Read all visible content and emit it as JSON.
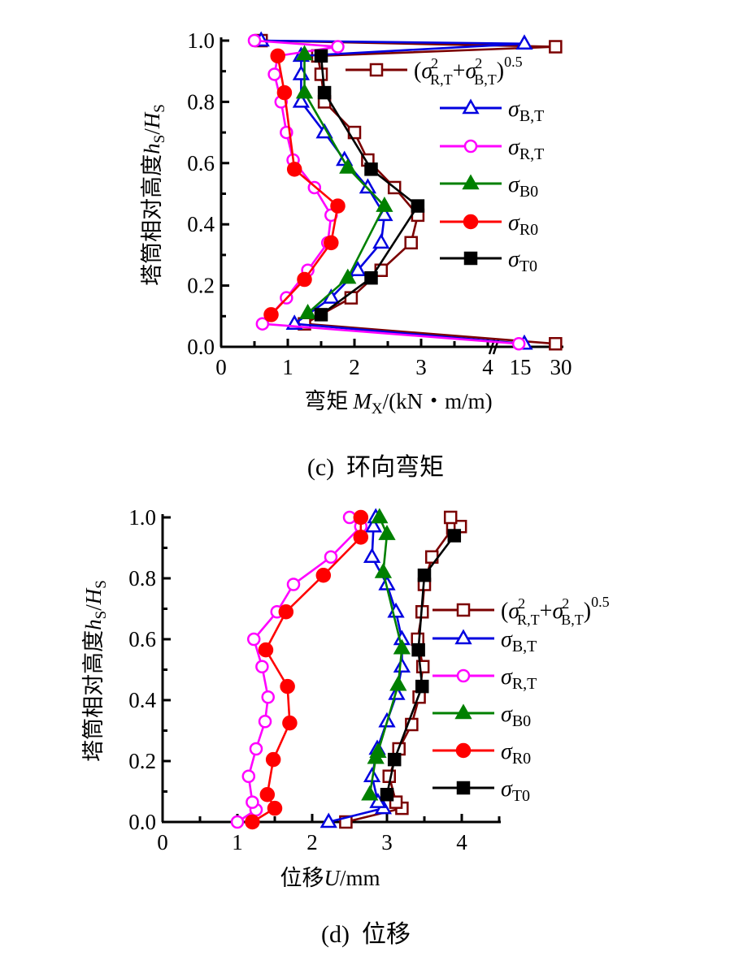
{
  "chart_data": [
    {
      "type": "line",
      "caption": "(c)  环向弯矩",
      "xlabel": "弯矩 M_X/(kN・m/m)",
      "xlabel_parts": {
        "prefix": "弯矩",
        "var": "M",
        "sub": "X",
        "suffix": "/(kN・m/m)"
      },
      "ylabel": "塔筒相对高度h_S/H_S",
      "ylabel_parts": {
        "prefix": "塔筒相对高度",
        "var1": "h",
        "sub1": "S",
        "slash": "/",
        "var2": "H",
        "sub2": "S"
      },
      "xticks": [
        "0",
        "1",
        "2",
        "3",
        "4",
        "15",
        "30"
      ],
      "xtick_values": [
        0,
        1,
        2,
        3,
        4,
        15,
        30
      ],
      "x_axis_break": "between 4 and 15",
      "yticks": [
        "0.0",
        "0.2",
        "0.4",
        "0.6",
        "0.8",
        "1.0"
      ],
      "ylim": [
        0,
        1.0
      ],
      "legend_position": "right",
      "series": [
        {
          "name": "(σ²R,T+σ²B,T)^0.5",
          "color": "#7b0000",
          "marker": "open-square",
          "points": [
            [
              0.6,
              1.0
            ],
            [
              28,
              0.98
            ],
            [
              1.45,
              0.95
            ],
            [
              1.5,
              0.89
            ],
            [
              1.55,
              0.8
            ],
            [
              2.0,
              0.7
            ],
            [
              2.2,
              0.61
            ],
            [
              2.6,
              0.52
            ],
            [
              2.95,
              0.43
            ],
            [
              2.85,
              0.34
            ],
            [
              2.4,
              0.25
            ],
            [
              1.95,
              0.16
            ],
            [
              1.25,
              0.075
            ],
            [
              28,
              0.01
            ]
          ]
        },
        {
          "name": "σB,T",
          "color": "#0000e0",
          "marker": "open-triangle",
          "points": [
            [
              0.6,
              1.0
            ],
            [
              16.5,
              0.99
            ],
            [
              1.2,
              0.95
            ],
            [
              1.2,
              0.89
            ],
            [
              1.2,
              0.8
            ],
            [
              1.55,
              0.7
            ],
            [
              1.85,
              0.61
            ],
            [
              2.2,
              0.52
            ],
            [
              2.45,
              0.43
            ],
            [
              2.4,
              0.34
            ],
            [
              2.05,
              0.25
            ],
            [
              1.65,
              0.16
            ],
            [
              1.1,
              0.075
            ],
            [
              16.5,
              0.01
            ]
          ]
        },
        {
          "name": "σR,T",
          "color": "#ff00ff",
          "marker": "open-circle",
          "points": [
            [
              0.5,
              1.0
            ],
            [
              1.75,
              0.98
            ],
            [
              0.85,
              0.95
            ],
            [
              0.8,
              0.89
            ],
            [
              0.9,
              0.8
            ],
            [
              0.98,
              0.7
            ],
            [
              1.08,
              0.61
            ],
            [
              1.4,
              0.52
            ],
            [
              1.65,
              0.43
            ],
            [
              1.6,
              0.34
            ],
            [
              1.3,
              0.25
            ],
            [
              0.98,
              0.16
            ],
            [
              0.62,
              0.075
            ],
            [
              14.5,
              0.01
            ]
          ]
        },
        {
          "name": "σB0",
          "color": "#008000",
          "marker": "filled-triangle",
          "points": [
            [
              1.25,
              0.955
            ],
            [
              1.25,
              0.83
            ],
            [
              1.9,
              0.585
            ],
            [
              2.45,
              0.46
            ],
            [
              1.9,
              0.225
            ],
            [
              1.3,
              0.11
            ]
          ]
        },
        {
          "name": "σR0",
          "color": "#ff0000",
          "marker": "filled-circle",
          "points": [
            [
              0.85,
              0.95
            ],
            [
              0.95,
              0.83
            ],
            [
              1.1,
              0.58
            ],
            [
              1.75,
              0.46
            ],
            [
              1.65,
              0.34
            ],
            [
              1.25,
              0.22
            ],
            [
              0.75,
              0.105
            ]
          ]
        },
        {
          "name": "σT0",
          "color": "#000000",
          "marker": "filled-square",
          "points": [
            [
              1.5,
              0.95
            ],
            [
              1.55,
              0.83
            ],
            [
              2.25,
              0.58
            ],
            [
              2.95,
              0.46
            ],
            [
              2.25,
              0.225
            ],
            [
              1.5,
              0.105
            ]
          ]
        }
      ]
    },
    {
      "type": "line",
      "caption": "(d)  位移",
      "xlabel": "位移U/mm",
      "xlabel_parts": {
        "prefix": "位移",
        "var": "U",
        "suffix": "/mm"
      },
      "ylabel": "塔筒相对高度h_S/H_S",
      "ylabel_parts": {
        "prefix": "塔筒相对高度",
        "var1": "h",
        "sub1": "S",
        "slash": "/",
        "var2": "H",
        "sub2": "S"
      },
      "xticks": [
        "0",
        "1",
        "2",
        "3",
        "4"
      ],
      "xtick_values": [
        0,
        1,
        2,
        3,
        4
      ],
      "xlim": [
        0,
        4.5
      ],
      "yticks": [
        "0.0",
        "0.2",
        "0.4",
        "0.6",
        "0.8",
        "1.0"
      ],
      "ylim": [
        0,
        1.0
      ],
      "legend_position": "right",
      "series": [
        {
          "name": "(σ²R,T+σ²B,T)^0.5",
          "color": "#7b0000",
          "marker": "open-square",
          "points": [
            [
              2.45,
              0.0
            ],
            [
              3.2,
              0.045
            ],
            [
              3.12,
              0.065
            ],
            [
              3.03,
              0.15
            ],
            [
              3.16,
              0.24
            ],
            [
              3.33,
              0.32
            ],
            [
              3.43,
              0.41
            ],
            [
              3.48,
              0.51
            ],
            [
              3.41,
              0.6
            ],
            [
              3.47,
              0.69
            ],
            [
              3.5,
              0.78
            ],
            [
              3.6,
              0.87
            ],
            [
              3.88,
              0.965
            ],
            [
              3.98,
              0.97
            ],
            [
              3.85,
              1.0
            ]
          ]
        },
        {
          "name": "σB,T",
          "color": "#0000e0",
          "marker": "open-triangle",
          "points": [
            [
              2.22,
              0.0
            ],
            [
              2.95,
              0.045
            ],
            [
              2.88,
              0.065
            ],
            [
              2.8,
              0.15
            ],
            [
              2.87,
              0.24
            ],
            [
              3.0,
              0.33
            ],
            [
              3.13,
              0.42
            ],
            [
              3.2,
              0.51
            ],
            [
              3.2,
              0.6
            ],
            [
              3.12,
              0.69
            ],
            [
              3.0,
              0.78
            ],
            [
              2.8,
              0.87
            ],
            [
              2.82,
              0.97
            ],
            [
              2.85,
              1.0
            ]
          ]
        },
        {
          "name": "σR,T",
          "color": "#ff00ff",
          "marker": "open-circle",
          "points": [
            [
              1.0,
              0.0
            ],
            [
              1.25,
              0.04
            ],
            [
              1.2,
              0.065
            ],
            [
              1.15,
              0.15
            ],
            [
              1.25,
              0.24
            ],
            [
              1.37,
              0.33
            ],
            [
              1.41,
              0.41
            ],
            [
              1.33,
              0.51
            ],
            [
              1.22,
              0.6
            ],
            [
              1.53,
              0.69
            ],
            [
              1.75,
              0.78
            ],
            [
              2.25,
              0.87
            ],
            [
              2.65,
              0.97
            ],
            [
              2.5,
              1.0
            ]
          ]
        },
        {
          "name": "σB0",
          "color": "#008000",
          "marker": "filled-triangle",
          "points": [
            [
              2.77,
              0.09
            ],
            [
              2.85,
              0.21
            ],
            [
              2.88,
              0.23
            ],
            [
              3.15,
              0.45
            ],
            [
              3.2,
              0.57
            ],
            [
              2.95,
              0.82
            ],
            [
              3.0,
              0.945
            ],
            [
              2.9,
              1.0
            ]
          ]
        },
        {
          "name": "σR0",
          "color": "#ff0000",
          "marker": "filled-circle",
          "points": [
            [
              1.2,
              0.0
            ],
            [
              1.5,
              0.045
            ],
            [
              1.4,
              0.09
            ],
            [
              1.48,
              0.205
            ],
            [
              1.7,
              0.325
            ],
            [
              1.67,
              0.445
            ],
            [
              1.38,
              0.565
            ],
            [
              1.65,
              0.69
            ],
            [
              2.15,
              0.81
            ],
            [
              2.65,
              0.935
            ],
            [
              2.65,
              1.0
            ]
          ]
        },
        {
          "name": "σT0",
          "color": "#000000",
          "marker": "filled-square",
          "points": [
            [
              3.0,
              0.09
            ],
            [
              3.1,
              0.205
            ],
            [
              3.47,
              0.445
            ],
            [
              3.42,
              0.565
            ],
            [
              3.5,
              0.81
            ],
            [
              3.9,
              0.94
            ]
          ]
        }
      ]
    }
  ],
  "legend_labels": {
    "combined": {
      "open": "(σ",
      "sub1": "R,T",
      "plus": "+σ",
      "sub2": "B,T",
      "close": ")",
      "exp": "0.5",
      "sq": "2"
    },
    "sBT": {
      "sym": "σ",
      "sub": "B,T"
    },
    "sRT": {
      "sym": "σ",
      "sub": "R,T"
    },
    "sB0": {
      "sym": "σ",
      "sub": "B0"
    },
    "sR0": {
      "sym": "σ",
      "sub": "R0"
    },
    "sT0": {
      "sym": "σ",
      "sub": "T0"
    }
  }
}
